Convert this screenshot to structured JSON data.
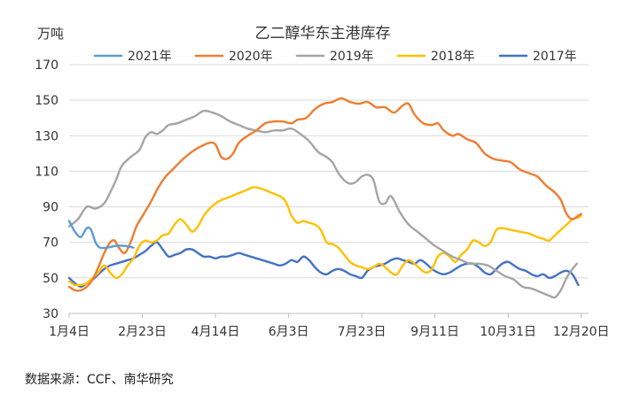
{
  "chart_data": {
    "type": "line",
    "title": "乙二醇华东主港库存",
    "unit_label": "万吨",
    "xlabel": "",
    "ylabel": "",
    "ylim": [
      30,
      170
    ],
    "yticks": [
      30,
      50,
      70,
      90,
      110,
      130,
      150,
      170
    ],
    "x_range_days": [
      4,
      359
    ],
    "xticks": [
      {
        "label": "1月4日",
        "day": 4
      },
      {
        "label": "2月23日",
        "day": 54
      },
      {
        "label": "4月14日",
        "day": 104
      },
      {
        "label": "6月3日",
        "day": 154
      },
      {
        "label": "7月23日",
        "day": 204
      },
      {
        "label": "9月11日",
        "day": 254
      },
      {
        "label": "10月31日",
        "day": 304
      },
      {
        "label": "12月20日",
        "day": 354
      }
    ],
    "grid": "horizontal",
    "legend_position": "top",
    "series": [
      {
        "name": "2021年",
        "color": "#5b9bd5",
        "points": [
          [
            4,
            82
          ],
          [
            8,
            76
          ],
          [
            12,
            73
          ],
          [
            16,
            78
          ],
          [
            19,
            77
          ],
          [
            22,
            70
          ],
          [
            25,
            67
          ],
          [
            30,
            67
          ],
          [
            36,
            68
          ],
          [
            42,
            68
          ],
          [
            48,
            67
          ]
        ]
      },
      {
        "name": "2020年",
        "color": "#ed7d31",
        "points": [
          [
            4,
            45
          ],
          [
            8,
            43
          ],
          [
            12,
            43
          ],
          [
            16,
            45
          ],
          [
            20,
            49
          ],
          [
            24,
            56
          ],
          [
            28,
            64
          ],
          [
            32,
            70
          ],
          [
            35,
            71
          ],
          [
            38,
            67
          ],
          [
            42,
            64
          ],
          [
            46,
            70
          ],
          [
            50,
            79
          ],
          [
            55,
            86
          ],
          [
            60,
            93
          ],
          [
            65,
            101
          ],
          [
            70,
            107
          ],
          [
            76,
            112
          ],
          [
            82,
            117
          ],
          [
            88,
            121
          ],
          [
            94,
            124
          ],
          [
            100,
            126
          ],
          [
            104,
            125
          ],
          [
            108,
            118
          ],
          [
            112,
            117
          ],
          [
            116,
            120
          ],
          [
            120,
            126
          ],
          [
            126,
            130
          ],
          [
            132,
            133
          ],
          [
            138,
            137
          ],
          [
            144,
            138
          ],
          [
            150,
            138
          ],
          [
            156,
            137
          ],
          [
            160,
            139
          ],
          [
            166,
            140
          ],
          [
            172,
            145
          ],
          [
            178,
            148
          ],
          [
            184,
            149
          ],
          [
            190,
            151
          ],
          [
            196,
            149
          ],
          [
            202,
            148
          ],
          [
            208,
            149
          ],
          [
            214,
            146
          ],
          [
            220,
            146
          ],
          [
            226,
            143
          ],
          [
            232,
            147
          ],
          [
            236,
            148
          ],
          [
            240,
            142
          ],
          [
            246,
            137
          ],
          [
            252,
            136
          ],
          [
            256,
            137
          ],
          [
            260,
            133
          ],
          [
            266,
            130
          ],
          [
            270,
            131
          ],
          [
            276,
            128
          ],
          [
            282,
            126
          ],
          [
            288,
            120
          ],
          [
            294,
            117
          ],
          [
            300,
            116
          ],
          [
            306,
            115
          ],
          [
            312,
            111
          ],
          [
            318,
            109
          ],
          [
            324,
            107
          ],
          [
            330,
            102
          ],
          [
            336,
            98
          ],
          [
            340,
            94
          ],
          [
            344,
            86
          ],
          [
            348,
            83
          ],
          [
            352,
            85
          ],
          [
            354,
            86
          ]
        ]
      },
      {
        "name": "2019年",
        "color": "#a5a5a5",
        "points": [
          [
            4,
            79
          ],
          [
            10,
            83
          ],
          [
            16,
            90
          ],
          [
            22,
            89
          ],
          [
            28,
            92
          ],
          [
            32,
            98
          ],
          [
            36,
            105
          ],
          [
            40,
            113
          ],
          [
            46,
            118
          ],
          [
            52,
            122
          ],
          [
            56,
            129
          ],
          [
            60,
            132
          ],
          [
            64,
            131
          ],
          [
            68,
            133
          ],
          [
            72,
            136
          ],
          [
            78,
            137
          ],
          [
            84,
            139
          ],
          [
            90,
            141
          ],
          [
            96,
            144
          ],
          [
            102,
            143
          ],
          [
            108,
            141
          ],
          [
            114,
            138
          ],
          [
            120,
            136
          ],
          [
            126,
            134
          ],
          [
            132,
            133
          ],
          [
            138,
            132
          ],
          [
            144,
            133
          ],
          [
            150,
            133
          ],
          [
            156,
            134
          ],
          [
            162,
            131
          ],
          [
            168,
            127
          ],
          [
            174,
            121
          ],
          [
            180,
            118
          ],
          [
            184,
            115
          ],
          [
            188,
            109
          ],
          [
            192,
            105
          ],
          [
            196,
            103
          ],
          [
            200,
            104
          ],
          [
            204,
            107
          ],
          [
            208,
            108
          ],
          [
            212,
            105
          ],
          [
            216,
            93
          ],
          [
            220,
            92
          ],
          [
            224,
            96
          ],
          [
            230,
            87
          ],
          [
            236,
            80
          ],
          [
            242,
            76
          ],
          [
            248,
            72
          ],
          [
            254,
            68
          ],
          [
            260,
            65
          ],
          [
            266,
            62
          ],
          [
            272,
            60
          ],
          [
            278,
            58
          ],
          [
            284,
            58
          ],
          [
            290,
            57
          ],
          [
            296,
            54
          ],
          [
            302,
            51
          ],
          [
            308,
            49
          ],
          [
            314,
            45
          ],
          [
            320,
            44
          ],
          [
            326,
            42
          ],
          [
            332,
            40
          ],
          [
            336,
            39
          ],
          [
            340,
            43
          ],
          [
            344,
            50
          ],
          [
            348,
            55
          ],
          [
            351,
            58
          ]
        ]
      },
      {
        "name": "2018年",
        "color": "#ffc000",
        "points": [
          [
            4,
            48
          ],
          [
            8,
            46
          ],
          [
            12,
            46
          ],
          [
            16,
            47
          ],
          [
            20,
            50
          ],
          [
            24,
            53
          ],
          [
            28,
            57
          ],
          [
            32,
            53
          ],
          [
            36,
            50
          ],
          [
            40,
            52
          ],
          [
            44,
            57
          ],
          [
            48,
            61
          ],
          [
            52,
            68
          ],
          [
            56,
            71
          ],
          [
            60,
            70
          ],
          [
            64,
            71
          ],
          [
            68,
            74
          ],
          [
            72,
            75
          ],
          [
            76,
            80
          ],
          [
            80,
            83
          ],
          [
            84,
            80
          ],
          [
            88,
            76
          ],
          [
            92,
            79
          ],
          [
            96,
            85
          ],
          [
            100,
            89
          ],
          [
            106,
            93
          ],
          [
            112,
            95
          ],
          [
            118,
            97
          ],
          [
            124,
            99
          ],
          [
            130,
            101
          ],
          [
            136,
            100
          ],
          [
            142,
            98
          ],
          [
            148,
            96
          ],
          [
            152,
            93
          ],
          [
            156,
            85
          ],
          [
            160,
            81
          ],
          [
            164,
            82
          ],
          [
            168,
            81
          ],
          [
            172,
            80
          ],
          [
            176,
            77
          ],
          [
            180,
            70
          ],
          [
            184,
            69
          ],
          [
            188,
            67
          ],
          [
            192,
            63
          ],
          [
            196,
            59
          ],
          [
            200,
            57
          ],
          [
            204,
            56
          ],
          [
            208,
            55
          ],
          [
            212,
            56
          ],
          [
            216,
            58
          ],
          [
            220,
            56
          ],
          [
            224,
            53
          ],
          [
            228,
            52
          ],
          [
            232,
            57
          ],
          [
            236,
            60
          ],
          [
            240,
            58
          ],
          [
            244,
            55
          ],
          [
            248,
            53
          ],
          [
            252,
            55
          ],
          [
            256,
            62
          ],
          [
            260,
            64
          ],
          [
            264,
            62
          ],
          [
            268,
            59
          ],
          [
            272,
            63
          ],
          [
            276,
            66
          ],
          [
            280,
            71
          ],
          [
            284,
            70
          ],
          [
            288,
            68
          ],
          [
            292,
            70
          ],
          [
            296,
            77
          ],
          [
            300,
            78
          ],
          [
            306,
            77
          ],
          [
            312,
            76
          ],
          [
            318,
            75
          ],
          [
            324,
            73
          ],
          [
            328,
            72
          ],
          [
            332,
            71
          ],
          [
            336,
            74
          ],
          [
            340,
            77
          ],
          [
            344,
            80
          ],
          [
            348,
            83
          ],
          [
            352,
            84
          ],
          [
            354,
            85
          ]
        ]
      },
      {
        "name": "2017年",
        "color": "#4472c4",
        "points": [
          [
            4,
            50
          ],
          [
            8,
            47
          ],
          [
            12,
            45
          ],
          [
            16,
            47
          ],
          [
            20,
            49
          ],
          [
            24,
            52
          ],
          [
            28,
            55
          ],
          [
            32,
            57
          ],
          [
            36,
            58
          ],
          [
            40,
            59
          ],
          [
            44,
            60
          ],
          [
            48,
            61
          ],
          [
            52,
            63
          ],
          [
            56,
            65
          ],
          [
            60,
            68
          ],
          [
            64,
            70
          ],
          [
            68,
            66
          ],
          [
            72,
            62
          ],
          [
            76,
            63
          ],
          [
            80,
            64
          ],
          [
            84,
            66
          ],
          [
            88,
            66
          ],
          [
            92,
            64
          ],
          [
            96,
            62
          ],
          [
            100,
            62
          ],
          [
            104,
            61
          ],
          [
            108,
            62
          ],
          [
            112,
            62
          ],
          [
            116,
            63
          ],
          [
            120,
            64
          ],
          [
            124,
            63
          ],
          [
            128,
            62
          ],
          [
            132,
            61
          ],
          [
            136,
            60
          ],
          [
            140,
            59
          ],
          [
            144,
            58
          ],
          [
            148,
            57
          ],
          [
            152,
            58
          ],
          [
            156,
            60
          ],
          [
            160,
            59
          ],
          [
            164,
            62
          ],
          [
            168,
            60
          ],
          [
            172,
            56
          ],
          [
            176,
            53
          ],
          [
            180,
            52
          ],
          [
            184,
            54
          ],
          [
            188,
            55
          ],
          [
            192,
            54
          ],
          [
            196,
            52
          ],
          [
            200,
            51
          ],
          [
            204,
            50
          ],
          [
            208,
            54
          ],
          [
            212,
            56
          ],
          [
            216,
            57
          ],
          [
            220,
            58
          ],
          [
            224,
            60
          ],
          [
            228,
            61
          ],
          [
            232,
            60
          ],
          [
            236,
            59
          ],
          [
            240,
            58
          ],
          [
            244,
            60
          ],
          [
            248,
            58
          ],
          [
            252,
            55
          ],
          [
            256,
            53
          ],
          [
            260,
            52
          ],
          [
            264,
            53
          ],
          [
            268,
            55
          ],
          [
            272,
            57
          ],
          [
            276,
            58
          ],
          [
            280,
            58
          ],
          [
            284,
            56
          ],
          [
            288,
            53
          ],
          [
            292,
            52
          ],
          [
            296,
            55
          ],
          [
            300,
            58
          ],
          [
            304,
            59
          ],
          [
            308,
            57
          ],
          [
            312,
            55
          ],
          [
            316,
            54
          ],
          [
            320,
            52
          ],
          [
            324,
            51
          ],
          [
            328,
            52
          ],
          [
            332,
            50
          ],
          [
            336,
            51
          ],
          [
            340,
            53
          ],
          [
            344,
            54
          ],
          [
            348,
            52
          ],
          [
            352,
            46
          ]
        ]
      }
    ]
  },
  "source_note": "数据来源：CCF、南华研究"
}
